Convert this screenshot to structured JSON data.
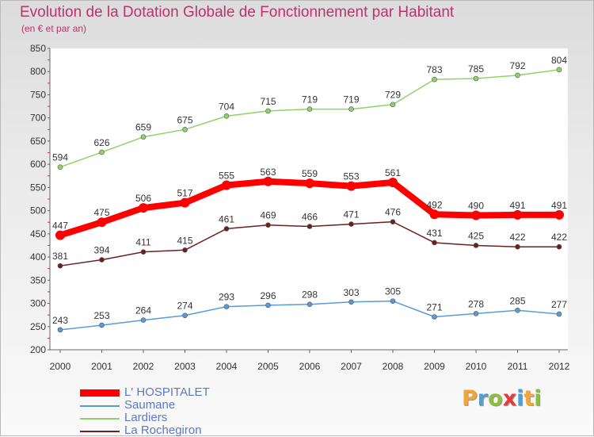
{
  "title": "Evolution de la Dotation Globale de Fonctionnement par Habitant",
  "subtitle": "(en € et par an)",
  "logo": {
    "text": "Proxiti",
    "letters": [
      {
        "ch": "P",
        "color": "#f2a53a"
      },
      {
        "ch": "r",
        "color": "#4f9ed4"
      },
      {
        "ch": "o",
        "color": "#8cbf3f"
      },
      {
        "ch": "x",
        "color": "#e63b3b"
      },
      {
        "ch": "i",
        "color": "#4f9ed4"
      },
      {
        "ch": "t",
        "color": "#f2a53a"
      },
      {
        "ch": "i",
        "color": "#8cbf3f"
      }
    ]
  },
  "chart_data": {
    "type": "line",
    "title": "Evolution de la Dotation Globale de Fonctionnement par Habitant",
    "subtitle": "(en € et par an)",
    "xlabel": "",
    "ylabel": "",
    "ylim": [
      200,
      850
    ],
    "ytick_step": 50,
    "grid": false,
    "legend_position": "bottom-left",
    "x": [
      "2000",
      "2001",
      "2002",
      "2003",
      "2004",
      "2005",
      "2006",
      "2007",
      "2008",
      "2009",
      "2010",
      "2011",
      "2012"
    ],
    "series": [
      {
        "name": "L' HOSPITALET",
        "color": "#ff0000",
        "emphasis": true,
        "values": [
          447,
          475,
          506,
          517,
          555,
          563,
          559,
          553,
          561,
          492,
          490,
          491,
          491
        ]
      },
      {
        "name": "Saumane",
        "color": "#5b9bd5",
        "emphasis": false,
        "values": [
          243,
          253,
          264,
          274,
          293,
          296,
          298,
          303,
          305,
          271,
          278,
          285,
          277
        ]
      },
      {
        "name": "Lardiers",
        "color": "#8ed36a",
        "emphasis": false,
        "values": [
          594,
          626,
          659,
          675,
          704,
          715,
          719,
          719,
          729,
          783,
          785,
          792,
          804
        ]
      },
      {
        "name": "La Rochegiron",
        "color": "#6b1f1f",
        "emphasis": false,
        "values": [
          381,
          394,
          411,
          415,
          461,
          469,
          466,
          471,
          476,
          431,
          425,
          422,
          422
        ]
      }
    ]
  }
}
